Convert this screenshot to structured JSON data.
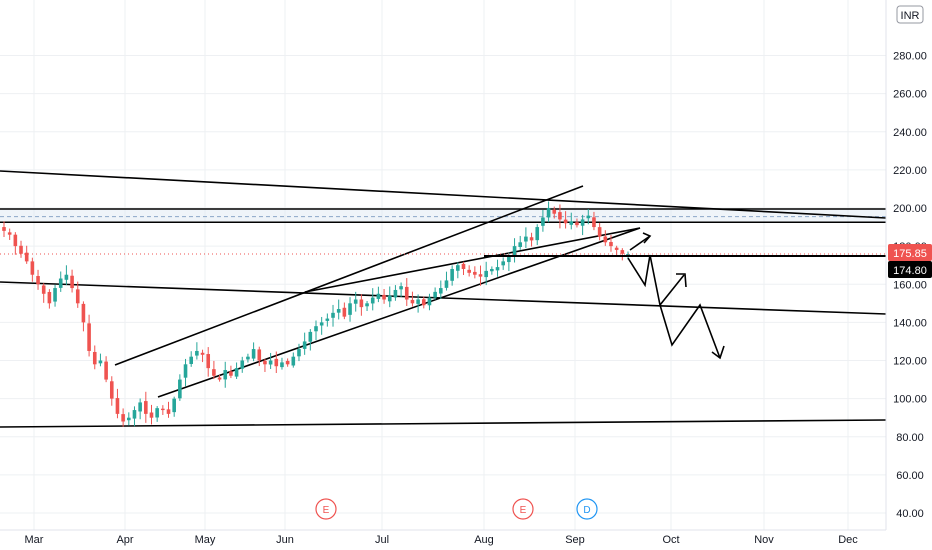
{
  "currency": "INR",
  "price_axis": {
    "ticks": [
      40,
      60,
      80,
      100,
      120,
      140,
      160,
      180,
      200,
      220,
      240,
      260,
      280
    ],
    "labels": [
      "40.00",
      "60.00",
      "80.00",
      "100.00",
      "120.00",
      "140.00",
      "160.00",
      "180.00",
      "200.00",
      "220.00",
      "240.00",
      "260.00",
      "280.00"
    ],
    "range": [
      33,
      306
    ]
  },
  "time_axis": {
    "labels": [
      "Mar",
      "Apr",
      "May",
      "Jun",
      "Jul",
      "Aug",
      "Sep",
      "Oct",
      "Nov",
      "Dec"
    ]
  },
  "price_markers": {
    "last_price": "175.85",
    "level": "174.80",
    "last_price_color": "#ef5350",
    "level_color": "#000000"
  },
  "events": [
    {
      "label": "E",
      "color": "#ef5350"
    },
    {
      "label": "E",
      "color": "#ef5350"
    },
    {
      "label": "D",
      "color": "#2196f3"
    }
  ],
  "colors": {
    "up": "#26a69a",
    "down": "#ef5350",
    "drawing": "#000000",
    "zone": "#8ca7c7"
  },
  "chart_data": {
    "type": "candlestick",
    "title": "",
    "xlabel": "",
    "ylabel": "",
    "ylim": [
      33,
      306
    ],
    "x_categories": [
      "Mar",
      "Apr",
      "May",
      "Jun",
      "Jul",
      "Aug",
      "Sep",
      "Oct",
      "Nov",
      "Dec"
    ],
    "closes": [
      188,
      186,
      180,
      176,
      172,
      165,
      160,
      155,
      150,
      158,
      163,
      165,
      158,
      150,
      140,
      125,
      118,
      120,
      110,
      100,
      92,
      88,
      90,
      94,
      98,
      92,
      90,
      95,
      94,
      92,
      100,
      110,
      118,
      122,
      125,
      123,
      116,
      112,
      110,
      115,
      112,
      116,
      120,
      122,
      126,
      120,
      118,
      120,
      117,
      119,
      118,
      122,
      126,
      130,
      135,
      138,
      140,
      142,
      145,
      147,
      143,
      150,
      152,
      148,
      150,
      153,
      155,
      152,
      154,
      157,
      159,
      152,
      150,
      152,
      149,
      153,
      156,
      158,
      162,
      168,
      170,
      168,
      166,
      165,
      164,
      167,
      168,
      169,
      172,
      175,
      180,
      182,
      185,
      183,
      190,
      195,
      200,
      197,
      194,
      192,
      193,
      191,
      194,
      196,
      190,
      185,
      182,
      180,
      178,
      176,
      175.85
    ],
    "zone_lines": [
      192.5,
      195.5,
      199.5
    ],
    "horizontal_levels": [
      174.8
    ],
    "trendlines_note": "rising channel from Apr to Sep, long falling trendlines from Mar, flat support near 85-90, projected zigzag path down to ~125"
  }
}
